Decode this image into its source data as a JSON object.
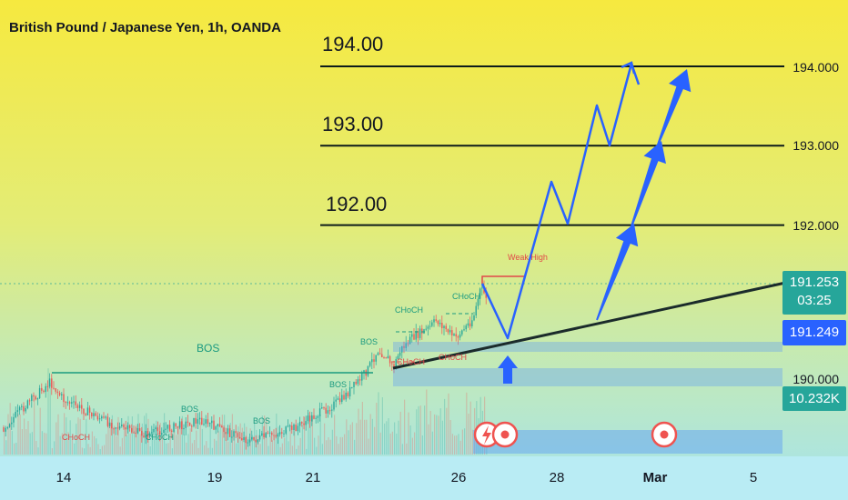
{
  "header": {
    "title": "British Pound / Japanese Yen, 1h, OANDA"
  },
  "levels": [
    {
      "label": "194.00",
      "price": "194.000"
    },
    {
      "label": "193.00",
      "price": "193.000"
    },
    {
      "label": "192.00",
      "price": "192.000"
    }
  ],
  "price_axis": {
    "last_price": "191.253",
    "countdown": "03:25",
    "bid": "191.249",
    "low_tick": "190.000",
    "volume": "10.232K"
  },
  "x_ticks": [
    "14",
    "19",
    "21",
    "26",
    "28",
    "Mar",
    "5"
  ],
  "annotations": {
    "bos": "BOS",
    "choch": "CHoCH",
    "weak_high": "Weak High"
  },
  "colors": {
    "bg_top": "#f4e94a",
    "bg_bottom": "#a8e6f0",
    "up": "#26a69a",
    "down": "#ef5350",
    "projection": "#2962ff",
    "trend": "#1b2b2b",
    "zone": "#5b9cf5",
    "price_tag": "#26a69a",
    "bid_tag": "#2962ff"
  },
  "chart_data": {
    "type": "candlestick",
    "symbol": "British Pound / Japanese Yen",
    "interval": "1h",
    "levels": [
      194.0,
      193.0,
      192.0,
      190.0
    ],
    "last_price": 191.253,
    "bid_price": 191.249,
    "volume": "10.232K",
    "x_ticks": [
      "14",
      "19",
      "21",
      "26",
      "28",
      "Mar",
      "5"
    ]
  }
}
